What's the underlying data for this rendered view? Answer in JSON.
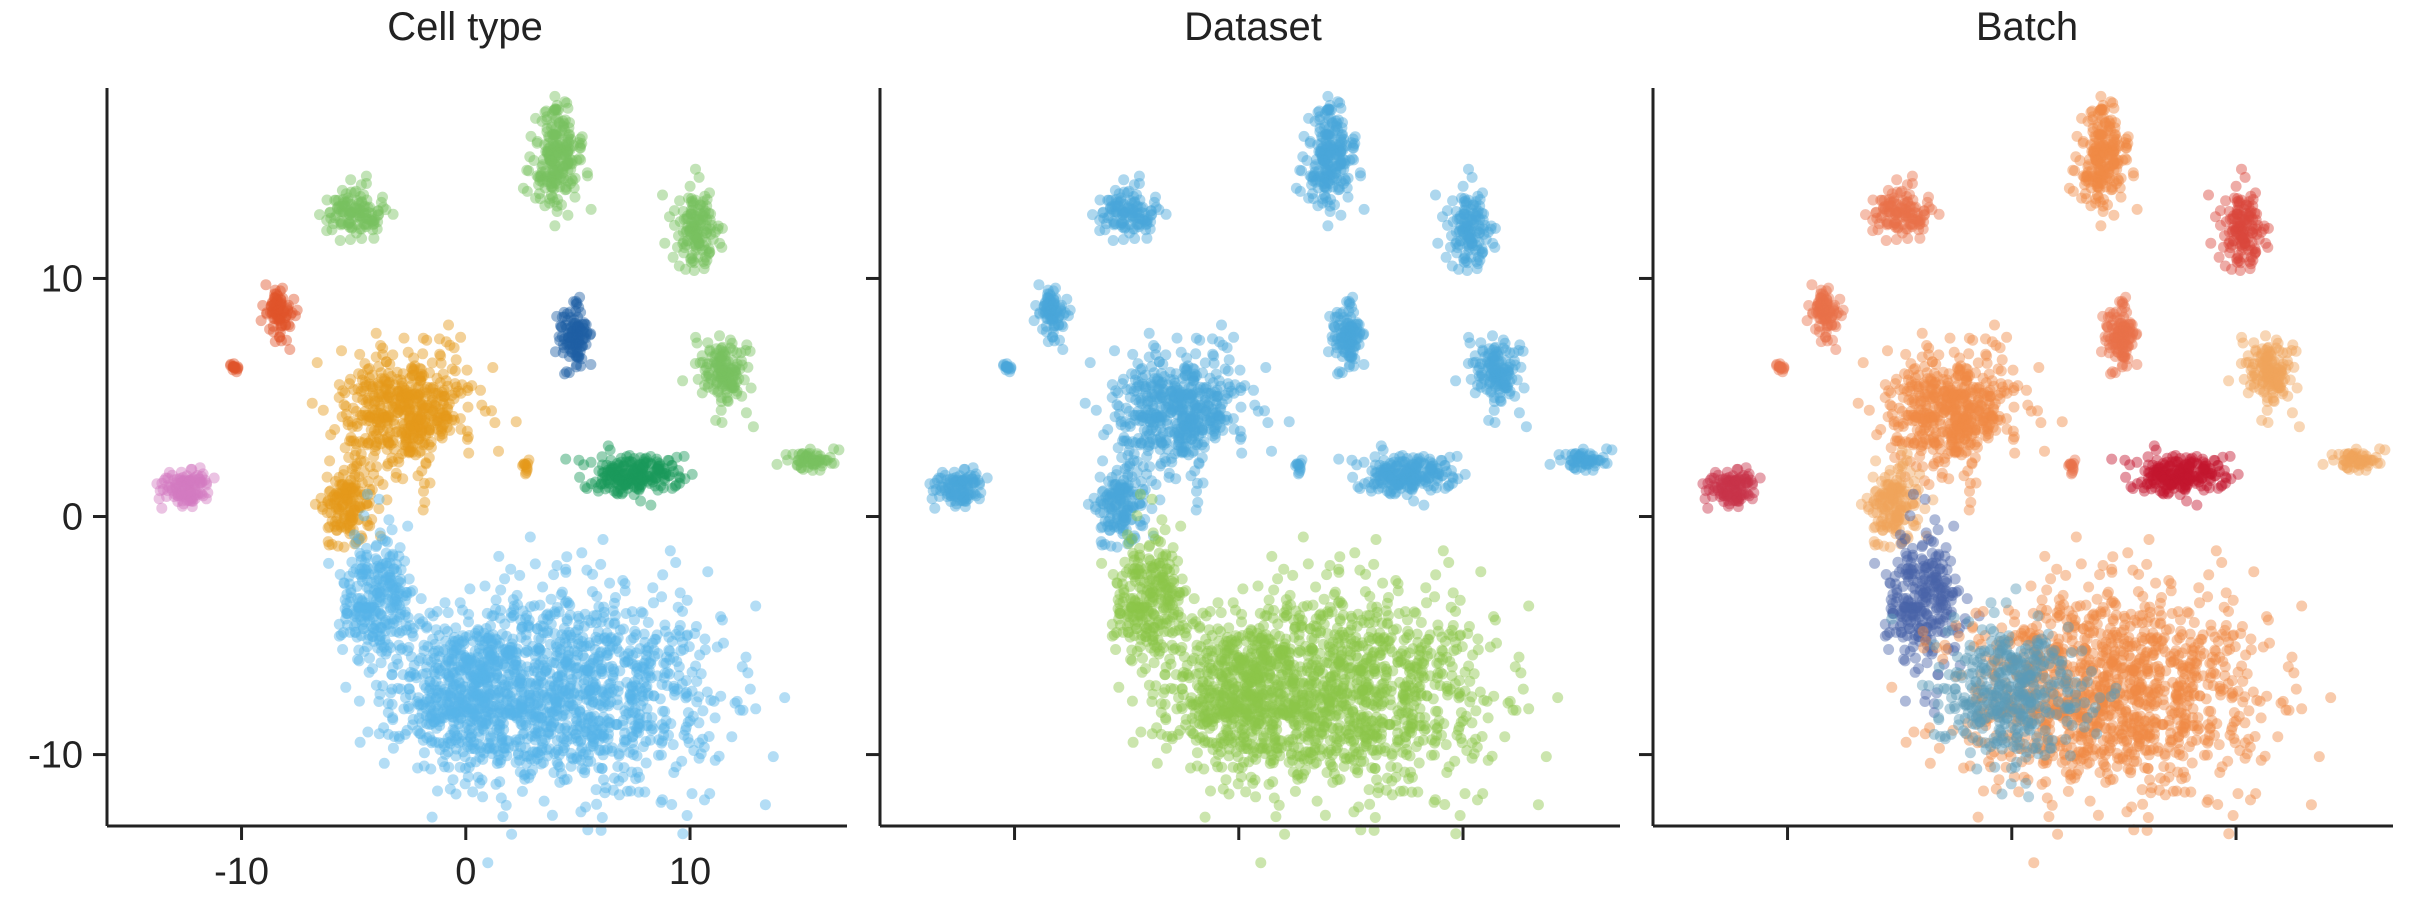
{
  "chart_data": [
    {
      "type": "scatter",
      "title": "Cell type",
      "color_by": "cell type",
      "xlim": [
        -16,
        17
      ],
      "ylim": [
        -13,
        18
      ],
      "x_ticks": [
        -10,
        0,
        10
      ],
      "y_ticks": [
        -10,
        0,
        10
      ],
      "x_tick_labels": [
        "-10",
        "0",
        "10"
      ],
      "y_tick_labels": [
        "-10",
        "0",
        "10"
      ],
      "xlabel": "",
      "ylabel": "",
      "grid": false,
      "legend": "none"
    },
    {
      "type": "scatter",
      "title": "Dataset",
      "color_by": "dataset",
      "xlim": [
        -16,
        17
      ],
      "ylim": [
        -13,
        18
      ],
      "x_ticks": [
        -10,
        0,
        10
      ],
      "y_ticks": [
        -10,
        0,
        10
      ],
      "x_tick_labels": [],
      "y_tick_labels": [],
      "xlabel": "",
      "ylabel": "",
      "grid": false,
      "legend": "none"
    },
    {
      "type": "scatter",
      "title": "Batch",
      "color_by": "batch",
      "xlim": [
        -16,
        17
      ],
      "ylim": [
        -13,
        18
      ],
      "x_ticks": [
        -10,
        0,
        10
      ],
      "y_ticks": [
        -10,
        0,
        10
      ],
      "x_tick_labels": [],
      "y_tick_labels": [],
      "xlabel": "",
      "ylabel": "",
      "grid": false,
      "legend": "none"
    }
  ],
  "clusters": [
    {
      "name": "top-center",
      "x": 4.0,
      "y": 15.0,
      "rx": 1.0,
      "ry": 2.0,
      "n": 220,
      "c": [
        "#78c160",
        "#4aa6d9",
        "#f08a44"
      ]
    },
    {
      "name": "top-left",
      "x": -5.0,
      "y": 12.8,
      "rx": 1.2,
      "ry": 0.9,
      "n": 120,
      "c": [
        "#78c160",
        "#4aa6d9",
        "#e8704a"
      ]
    },
    {
      "name": "right-upper",
      "x": 10.3,
      "y": 12.0,
      "rx": 0.9,
      "ry": 1.6,
      "n": 140,
      "c": [
        "#78c160",
        "#4aa6d9",
        "#d9483b"
      ]
    },
    {
      "name": "left-red",
      "x": -8.3,
      "y": 8.5,
      "rx": 0.5,
      "ry": 1.1,
      "n": 90,
      "c": [
        "#e0552b",
        "#4aa6d9",
        "#e8704a"
      ]
    },
    {
      "name": "left-red-dot",
      "x": -10.3,
      "y": 6.3,
      "rx": 0.2,
      "ry": 0.2,
      "n": 15,
      "c": [
        "#e0552b",
        "#4aa6d9",
        "#e8704a"
      ]
    },
    {
      "name": "center-dark",
      "x": 4.8,
      "y": 7.5,
      "rx": 0.6,
      "ry": 1.2,
      "n": 120,
      "c": [
        "#1f5fa5",
        "#4aa6d9",
        "#e8704a"
      ]
    },
    {
      "name": "right-mid",
      "x": 11.6,
      "y": 6.1,
      "rx": 1.1,
      "ry": 1.4,
      "n": 140,
      "c": [
        "#78c160",
        "#4aa6d9",
        "#f0a35a"
      ]
    },
    {
      "name": "far-right",
      "x": 15.3,
      "y": 2.4,
      "rx": 0.9,
      "ry": 0.4,
      "n": 60,
      "c": [
        "#78c160",
        "#4aa6d9",
        "#f0a35a"
      ]
    },
    {
      "name": "left-pink",
      "x": -12.6,
      "y": 1.2,
      "rx": 1.1,
      "ry": 0.8,
      "n": 110,
      "c": [
        "#d27bc0",
        "#4aa6d9",
        "#c8324a"
      ]
    },
    {
      "name": "green-island",
      "x": 7.5,
      "y": 1.8,
      "rx": 1.9,
      "ry": 0.8,
      "n": 220,
      "c": [
        "#1a9a5c",
        "#4aa6d9",
        "#c4172f"
      ]
    },
    {
      "name": "small-orange",
      "x": 2.7,
      "y": 2.0,
      "rx": 0.2,
      "ry": 0.3,
      "n": 12,
      "c": [
        "#e59a1b",
        "#4aa6d9",
        "#e8704a"
      ]
    },
    {
      "name": "orange-top",
      "x": -2.7,
      "y": 4.5,
      "rx": 2.6,
      "ry": 2.2,
      "n": 500,
      "c": [
        "#e59a1b",
        "#4aa6d9",
        "#f08a44"
      ]
    },
    {
      "name": "orange-tail",
      "x": -5.3,
      "y": 0.5,
      "rx": 1.0,
      "ry": 1.6,
      "n": 160,
      "c": [
        "#e59a1b",
        "#4aa6d9",
        "#f0a35a"
      ]
    },
    {
      "name": "blue-neck",
      "x": -4.0,
      "y": -3.5,
      "rx": 1.5,
      "ry": 2.6,
      "n": 280,
      "c": [
        "#56b4e9",
        "#8cc64a",
        "#4a63a9"
      ]
    },
    {
      "name": "blue-body",
      "x": 4.5,
      "y": -7.4,
      "rx": 6.0,
      "ry": 3.8,
      "n": 1200,
      "c": [
        "#56b4e9",
        "#8cc64a",
        "#f08a44"
      ]
    },
    {
      "name": "blue-belly",
      "x": 0.0,
      "y": -7.5,
      "rx": 3.0,
      "ry": 2.5,
      "n": 400,
      "c": [
        "#56b4e9",
        "#8cc64a",
        "#5a9cb8"
      ]
    }
  ]
}
